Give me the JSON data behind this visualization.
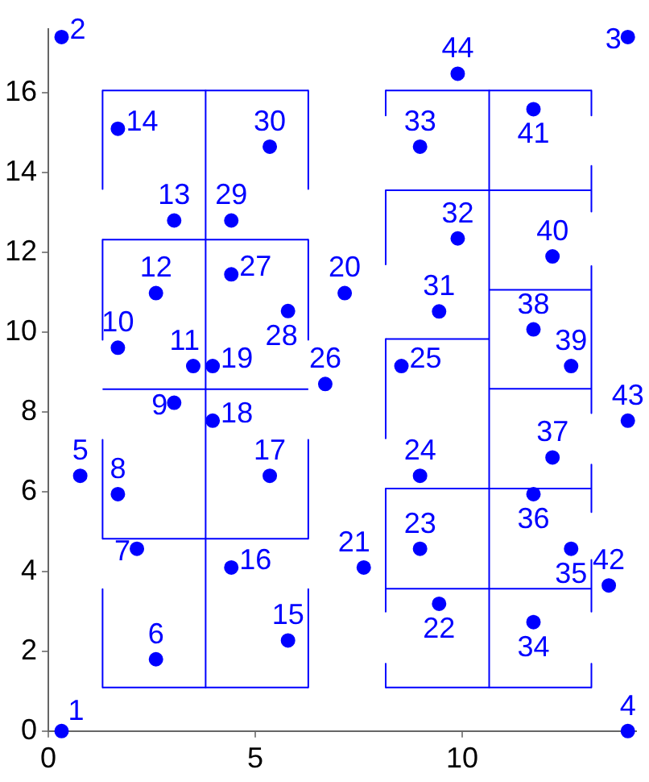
{
  "chart_data": {
    "type": "scatter",
    "xlim": [
      0,
      14.2
    ],
    "ylim": [
      0,
      17.6
    ],
    "xticks": [
      0,
      5,
      10
    ],
    "yticks": [
      0,
      2,
      4,
      6,
      8,
      10,
      12,
      14,
      16
    ],
    "grid": false,
    "legend": false,
    "series": [
      {
        "marker": "circle",
        "color": "#0000ff",
        "x": [
          0.32,
          0.32,
          14.0,
          14.0,
          0.77,
          2.6,
          2.14,
          1.68,
          3.04,
          1.68,
          3.5,
          2.6,
          3.04,
          1.68,
          5.79,
          4.42,
          5.35,
          3.97,
          3.97,
          7.16,
          7.62,
          9.44,
          8.98,
          8.98,
          8.53,
          6.69,
          4.42,
          5.79,
          4.42,
          5.35,
          9.44,
          9.89,
          8.98,
          11.72,
          12.63,
          11.72,
          12.18,
          11.72,
          12.63,
          12.18,
          11.72,
          13.54,
          14.0,
          9.89
        ],
        "values": [
          0,
          17.4,
          17.4,
          0,
          6.4,
          1.8,
          4.57,
          5.94,
          8.23,
          9.61,
          9.15,
          10.98,
          12.8,
          15.1,
          2.27,
          4.1,
          6.4,
          7.78,
          9.15,
          10.98,
          4.1,
          3.19,
          4.57,
          6.4,
          9.15,
          8.7,
          11.45,
          10.53,
          12.8,
          14.65,
          10.52,
          12.35,
          14.65,
          2.73,
          4.57,
          5.94,
          6.86,
          10.07,
          9.15,
          11.9,
          15.59,
          3.65,
          7.78,
          16.48
        ]
      },
      {
        "type": "line",
        "color": "#0000ff",
        "x": [
          1.31,
          6.28
        ],
        "values": [
          16.06,
          16.06
        ]
      },
      {
        "type": "line",
        "color": "#0000ff",
        "x": [
          1.31,
          1.31
        ],
        "values": [
          16.06,
          13.59
        ]
      },
      {
        "type": "line",
        "color": "#0000ff",
        "x": [
          6.28,
          6.28
        ],
        "values": [
          16.06,
          13.59
        ]
      },
      {
        "type": "line",
        "color": "#0000ff",
        "x": [
          3.8,
          3.8
        ],
        "values": [
          16.06,
          1.09
        ]
      },
      {
        "type": "line",
        "color": "#0000ff",
        "x": [
          1.31,
          6.28
        ],
        "values": [
          12.32,
          12.32
        ]
      },
      {
        "type": "line",
        "color": "#0000ff",
        "x": [
          1.31,
          1.31
        ],
        "values": [
          12.32,
          9.81
        ]
      },
      {
        "type": "line",
        "color": "#0000ff",
        "x": [
          6.28,
          6.28
        ],
        "values": [
          12.32,
          9.81
        ]
      },
      {
        "type": "line",
        "color": "#0000ff",
        "x": [
          1.31,
          6.28
        ],
        "values": [
          8.57,
          8.57
        ]
      },
      {
        "type": "line",
        "color": "#0000ff",
        "x": [
          1.31,
          1.31
        ],
        "values": [
          7.3,
          4.82
        ]
      },
      {
        "type": "line",
        "color": "#0000ff",
        "x": [
          6.28,
          6.28
        ],
        "values": [
          7.3,
          4.82
        ]
      },
      {
        "type": "line",
        "color": "#0000ff",
        "x": [
          1.31,
          6.28
        ],
        "values": [
          4.82,
          4.82
        ]
      },
      {
        "type": "line",
        "color": "#0000ff",
        "x": [
          1.31,
          1.31
        ],
        "values": [
          3.56,
          1.09
        ]
      },
      {
        "type": "line",
        "color": "#0000ff",
        "x": [
          6.28,
          6.28
        ],
        "values": [
          3.56,
          1.09
        ]
      },
      {
        "type": "line",
        "color": "#0000ff",
        "x": [
          1.31,
          6.28
        ],
        "values": [
          1.09,
          1.09
        ]
      },
      {
        "type": "line",
        "color": "#0000ff",
        "x": [
          8.15,
          13.12
        ],
        "values": [
          16.06,
          16.06
        ]
      },
      {
        "type": "line",
        "color": "#0000ff",
        "x": [
          8.15,
          13.12
        ],
        "values": [
          13.56,
          13.56
        ]
      },
      {
        "type": "line",
        "color": "#0000ff",
        "x": [
          10.65,
          13.12
        ],
        "values": [
          11.06,
          11.06
        ]
      },
      {
        "type": "line",
        "color": "#0000ff",
        "x": [
          8.15,
          10.65
        ],
        "values": [
          9.83,
          9.83
        ]
      },
      {
        "type": "line",
        "color": "#0000ff",
        "x": [
          10.65,
          13.12
        ],
        "values": [
          8.58,
          8.58
        ]
      },
      {
        "type": "line",
        "color": "#0000ff",
        "x": [
          8.15,
          13.12
        ],
        "values": [
          6.08,
          6.08
        ]
      },
      {
        "type": "line",
        "color": "#0000ff",
        "x": [
          8.15,
          13.12
        ],
        "values": [
          3.57,
          3.57
        ]
      },
      {
        "type": "line",
        "color": "#0000ff",
        "x": [
          8.15,
          13.12
        ],
        "values": [
          1.09,
          1.09
        ]
      },
      {
        "type": "line",
        "color": "#0000ff",
        "x": [
          10.65,
          10.65
        ],
        "values": [
          16.06,
          1.09
        ]
      },
      {
        "type": "line",
        "color": "#0000ff",
        "x": [
          8.15,
          8.15
        ],
        "values": [
          16.06,
          15.43
        ]
      },
      {
        "type": "line",
        "color": "#0000ff",
        "x": [
          8.15,
          8.15
        ],
        "values": [
          13.56,
          11.7
        ]
      },
      {
        "type": "line",
        "color": "#0000ff",
        "x": [
          8.15,
          8.15
        ],
        "values": [
          9.83,
          7.34
        ]
      },
      {
        "type": "line",
        "color": "#0000ff",
        "x": [
          8.15,
          8.15
        ],
        "values": [
          6.08,
          2.99
        ]
      },
      {
        "type": "line",
        "color": "#0000ff",
        "x": [
          8.15,
          8.15
        ],
        "values": [
          1.69,
          1.09
        ]
      },
      {
        "type": "line",
        "color": "#0000ff",
        "x": [
          13.12,
          13.12
        ],
        "values": [
          16.06,
          15.43
        ]
      },
      {
        "type": "line",
        "color": "#0000ff",
        "x": [
          13.12,
          13.12
        ],
        "values": [
          14.17,
          13.02
        ]
      },
      {
        "type": "line",
        "color": "#0000ff",
        "x": [
          13.12,
          13.12
        ],
        "values": [
          11.66,
          7.97
        ]
      },
      {
        "type": "line",
        "color": "#0000ff",
        "x": [
          13.12,
          13.12
        ],
        "values": [
          6.68,
          5.49
        ]
      },
      {
        "type": "line",
        "color": "#0000ff",
        "x": [
          13.12,
          13.12
        ],
        "values": [
          4.29,
          2.99
        ]
      },
      {
        "type": "line",
        "color": "#0000ff",
        "x": [
          13.12,
          13.12
        ],
        "values": [
          1.69,
          1.09
        ]
      }
    ],
    "annotations": [
      {
        "text": "1",
        "x": 0.32,
        "y": 0
      },
      {
        "text": "2",
        "x": 0.32,
        "y": 17.4
      },
      {
        "text": "3",
        "x": 14.0,
        "y": 17.4
      },
      {
        "text": "4",
        "x": 14.0,
        "y": 0
      },
      {
        "text": "5",
        "x": 0.77,
        "y": 6.4
      },
      {
        "text": "6",
        "x": 2.6,
        "y": 1.8
      },
      {
        "text": "7",
        "x": 2.14,
        "y": 4.57
      },
      {
        "text": "8",
        "x": 1.68,
        "y": 5.94
      },
      {
        "text": "9",
        "x": 3.04,
        "y": 8.23
      },
      {
        "text": "10",
        "x": 1.68,
        "y": 9.61
      },
      {
        "text": "11",
        "x": 3.5,
        "y": 9.15
      },
      {
        "text": "12",
        "x": 2.6,
        "y": 10.98
      },
      {
        "text": "13",
        "x": 3.04,
        "y": 12.8
      },
      {
        "text": "14",
        "x": 1.68,
        "y": 15.1
      },
      {
        "text": "15",
        "x": 5.79,
        "y": 2.27
      },
      {
        "text": "16",
        "x": 4.42,
        "y": 4.1
      },
      {
        "text": "17",
        "x": 5.35,
        "y": 6.4
      },
      {
        "text": "18",
        "x": 3.97,
        "y": 7.78
      },
      {
        "text": "19",
        "x": 3.97,
        "y": 9.15
      },
      {
        "text": "20",
        "x": 7.16,
        "y": 10.98
      },
      {
        "text": "21",
        "x": 7.62,
        "y": 4.1
      },
      {
        "text": "22",
        "x": 9.44,
        "y": 3.19
      },
      {
        "text": "23",
        "x": 8.98,
        "y": 4.57
      },
      {
        "text": "24",
        "x": 8.98,
        "y": 6.4
      },
      {
        "text": "25",
        "x": 8.53,
        "y": 9.15
      },
      {
        "text": "26",
        "x": 6.69,
        "y": 8.7
      },
      {
        "text": "27",
        "x": 4.42,
        "y": 11.45
      },
      {
        "text": "28",
        "x": 5.79,
        "y": 10.53
      },
      {
        "text": "29",
        "x": 4.42,
        "y": 12.8
      },
      {
        "text": "30",
        "x": 5.35,
        "y": 14.65
      },
      {
        "text": "31",
        "x": 9.44,
        "y": 10.52
      },
      {
        "text": "32",
        "x": 9.89,
        "y": 12.35
      },
      {
        "text": "33",
        "x": 8.98,
        "y": 14.65
      },
      {
        "text": "34",
        "x": 11.72,
        "y": 2.73
      },
      {
        "text": "35",
        "x": 12.63,
        "y": 4.57
      },
      {
        "text": "36",
        "x": 11.72,
        "y": 5.94
      },
      {
        "text": "37",
        "x": 12.18,
        "y": 6.86
      },
      {
        "text": "38",
        "x": 11.72,
        "y": 10.07
      },
      {
        "text": "39",
        "x": 12.63,
        "y": 9.15
      },
      {
        "text": "40",
        "x": 12.18,
        "y": 11.9
      },
      {
        "text": "41",
        "x": 11.72,
        "y": 15.59
      },
      {
        "text": "42",
        "x": 13.54,
        "y": 3.65
      },
      {
        "text": "43",
        "x": 14.0,
        "y": 7.78
      },
      {
        "text": "44",
        "x": 9.89,
        "y": 16.48
      }
    ]
  }
}
